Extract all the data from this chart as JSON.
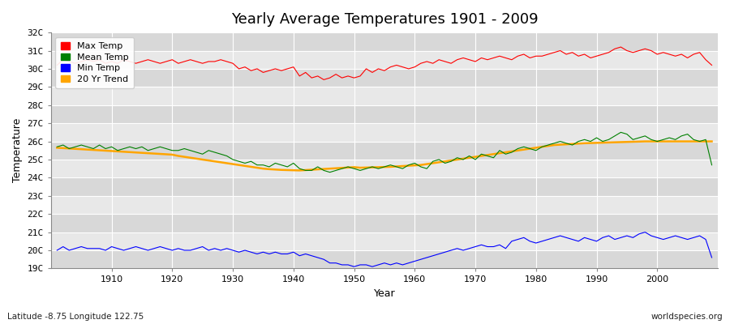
{
  "title": "Yearly Average Temperatures 1901 - 2009",
  "xlabel": "Year",
  "ylabel": "Temperature",
  "bottom_left_label": "Latitude -8.75 Longitude 122.75",
  "bottom_right_label": "worldspecies.org",
  "ylim_min": 19,
  "ylim_max": 32,
  "yticks": [
    19,
    20,
    21,
    22,
    23,
    24,
    25,
    26,
    27,
    28,
    29,
    30,
    31,
    32
  ],
  "ytick_labels": [
    "19C",
    "20C",
    "21C",
    "22C",
    "23C",
    "24C",
    "25C",
    "26C",
    "27C",
    "28C",
    "29C",
    "30C",
    "31C",
    "32C"
  ],
  "year_start": 1901,
  "year_end": 2009,
  "fig_bg_color": "#ffffff",
  "plot_bg_color": "#e8e8e8",
  "grid_color": "#ffffff",
  "max_temp_color": "#ff0000",
  "mean_temp_color": "#008000",
  "min_temp_color": "#0000ff",
  "trend_color": "#ffa500",
  "legend_labels": [
    "Max Temp",
    "Mean Temp",
    "Min Temp",
    "20 Yr Trend"
  ],
  "max_temp": [
    30.2,
    30.5,
    30.4,
    30.3,
    30.4,
    30.5,
    30.4,
    30.5,
    30.3,
    30.4,
    30.3,
    30.5,
    30.4,
    30.3,
    30.4,
    30.5,
    30.4,
    30.3,
    30.4,
    30.5,
    30.3,
    30.4,
    30.5,
    30.4,
    30.3,
    30.4,
    30.4,
    30.5,
    30.4,
    30.3,
    30.0,
    30.1,
    29.9,
    30.0,
    29.8,
    29.9,
    30.0,
    29.9,
    30.0,
    30.1,
    29.6,
    29.8,
    29.5,
    29.6,
    29.4,
    29.5,
    29.7,
    29.5,
    29.6,
    29.5,
    29.6,
    30.0,
    29.8,
    30.0,
    29.9,
    30.1,
    30.2,
    30.1,
    30.0,
    30.1,
    30.3,
    30.4,
    30.3,
    30.5,
    30.4,
    30.3,
    30.5,
    30.6,
    30.5,
    30.4,
    30.6,
    30.5,
    30.6,
    30.7,
    30.6,
    30.5,
    30.7,
    30.8,
    30.6,
    30.7,
    30.7,
    30.8,
    30.9,
    31.0,
    30.8,
    30.9,
    30.7,
    30.8,
    30.6,
    30.7,
    30.8,
    30.9,
    31.1,
    31.2,
    31.0,
    30.9,
    31.0,
    31.1,
    31.0,
    30.8,
    30.9,
    30.8,
    30.7,
    30.8,
    30.6,
    30.8,
    30.9,
    30.5,
    30.2
  ],
  "mean_temp": [
    25.7,
    25.8,
    25.6,
    25.7,
    25.8,
    25.7,
    25.6,
    25.8,
    25.6,
    25.7,
    25.5,
    25.6,
    25.7,
    25.6,
    25.7,
    25.5,
    25.6,
    25.7,
    25.6,
    25.5,
    25.5,
    25.6,
    25.5,
    25.4,
    25.3,
    25.5,
    25.4,
    25.3,
    25.2,
    25.0,
    24.9,
    24.8,
    24.9,
    24.7,
    24.7,
    24.6,
    24.8,
    24.7,
    24.6,
    24.8,
    24.5,
    24.4,
    24.4,
    24.6,
    24.4,
    24.3,
    24.4,
    24.5,
    24.6,
    24.5,
    24.4,
    24.5,
    24.6,
    24.5,
    24.6,
    24.7,
    24.6,
    24.5,
    24.7,
    24.8,
    24.6,
    24.5,
    24.9,
    25.0,
    24.8,
    24.9,
    25.1,
    25.0,
    25.2,
    25.0,
    25.3,
    25.2,
    25.1,
    25.5,
    25.3,
    25.4,
    25.6,
    25.7,
    25.6,
    25.5,
    25.7,
    25.8,
    25.9,
    26.0,
    25.9,
    25.8,
    26.0,
    26.1,
    26.0,
    26.2,
    26.0,
    26.1,
    26.3,
    26.5,
    26.4,
    26.1,
    26.2,
    26.3,
    26.1,
    26.0,
    26.1,
    26.2,
    26.1,
    26.3,
    26.4,
    26.1,
    26.0,
    26.1,
    24.7
  ],
  "min_temp": [
    20.0,
    20.2,
    20.0,
    20.1,
    20.2,
    20.1,
    20.1,
    20.1,
    20.0,
    20.2,
    20.1,
    20.0,
    20.1,
    20.2,
    20.1,
    20.0,
    20.1,
    20.2,
    20.1,
    20.0,
    20.1,
    20.0,
    20.0,
    20.1,
    20.2,
    20.0,
    20.1,
    20.0,
    20.1,
    20.0,
    19.9,
    20.0,
    19.9,
    19.8,
    19.9,
    19.8,
    19.9,
    19.8,
    19.8,
    19.9,
    19.7,
    19.8,
    19.7,
    19.6,
    19.5,
    19.3,
    19.3,
    19.2,
    19.2,
    19.1,
    19.2,
    19.2,
    19.1,
    19.2,
    19.3,
    19.2,
    19.3,
    19.2,
    19.3,
    19.4,
    19.5,
    19.6,
    19.7,
    19.8,
    19.9,
    20.0,
    20.1,
    20.0,
    20.1,
    20.2,
    20.3,
    20.2,
    20.2,
    20.3,
    20.1,
    20.5,
    20.6,
    20.7,
    20.5,
    20.4,
    20.5,
    20.6,
    20.7,
    20.8,
    20.7,
    20.6,
    20.5,
    20.7,
    20.6,
    20.5,
    20.7,
    20.8,
    20.6,
    20.7,
    20.8,
    20.7,
    20.9,
    21.0,
    20.8,
    20.7,
    20.6,
    20.7,
    20.8,
    20.7,
    20.6,
    20.7,
    20.8,
    20.6,
    19.6
  ],
  "trend": [
    25.65,
    25.63,
    25.61,
    25.59,
    25.57,
    25.55,
    25.53,
    25.51,
    25.49,
    25.47,
    25.45,
    25.43,
    25.41,
    25.39,
    25.37,
    25.35,
    25.33,
    25.31,
    25.29,
    25.27,
    25.2,
    25.15,
    25.1,
    25.05,
    25.0,
    24.95,
    24.9,
    24.85,
    24.8,
    24.75,
    24.7,
    24.65,
    24.6,
    24.55,
    24.5,
    24.47,
    24.45,
    24.43,
    24.42,
    24.41,
    24.4,
    24.42,
    24.44,
    24.46,
    24.48,
    24.5,
    24.52,
    24.54,
    24.56,
    24.58,
    24.55,
    24.56,
    24.57,
    24.58,
    24.59,
    24.6,
    24.62,
    24.64,
    24.66,
    24.68,
    24.7,
    24.75,
    24.8,
    24.85,
    24.9,
    24.95,
    25.0,
    25.05,
    25.1,
    25.15,
    25.2,
    25.25,
    25.3,
    25.35,
    25.4,
    25.45,
    25.5,
    25.55,
    25.6,
    25.65,
    25.7,
    25.75,
    25.8,
    25.82,
    25.84,
    25.86,
    25.88,
    25.9,
    25.91,
    25.92,
    25.93,
    25.94,
    25.95,
    25.96,
    25.97,
    25.98,
    25.99,
    26.0,
    26.0,
    26.0,
    26.0,
    26.0,
    26.0,
    26.0,
    26.0,
    26.0,
    26.0,
    26.0,
    26.0
  ]
}
